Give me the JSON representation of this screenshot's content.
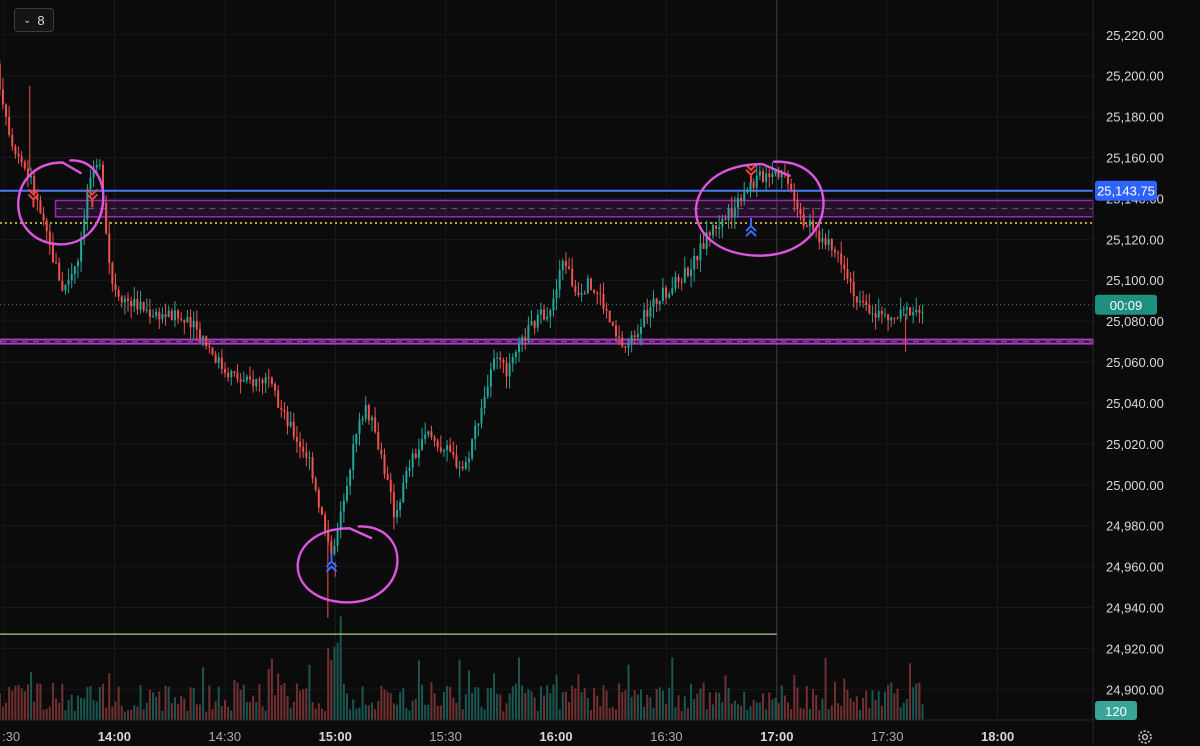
{
  "toolbar": {
    "interval_value": "8"
  },
  "chart_data": {
    "type": "candlestick",
    "title": "",
    "xlabel": "",
    "ylabel": "",
    "ylim": [
      24885,
      25237
    ],
    "y_ticks": [
      25220,
      25200,
      25180,
      25160,
      25140,
      25120,
      25100,
      25080,
      25060,
      25040,
      25020,
      25000,
      24980,
      24960,
      24940,
      24920,
      24900
    ],
    "y_tick_labels": [
      "25,220.00",
      "25,200.00",
      "25,180.00",
      "25,160.00",
      "25,140.00",
      "25,120.00",
      "25,100.00",
      "25,080.00",
      "25,060.00",
      "25,040.00",
      "25,020.00",
      "25,000.00",
      "24,980.00",
      "24,960.00",
      "24,940.00",
      "24,920.00",
      "24,900.00"
    ],
    "x_ticks": [
      {
        "label": ":30",
        "t": "13:30",
        "major": false
      },
      {
        "label": "14:00",
        "t": "14:00",
        "major": true
      },
      {
        "label": "14:30",
        "t": "14:30",
        "major": false
      },
      {
        "label": "15:00",
        "t": "15:00",
        "major": true
      },
      {
        "label": "15:30",
        "t": "15:30",
        "major": false
      },
      {
        "label": "16:00",
        "t": "16:00",
        "major": true
      },
      {
        "label": "16:30",
        "t": "16:30",
        "major": false
      },
      {
        "label": "17:00",
        "t": "17:00",
        "major": true
      },
      {
        "label": "17:30",
        "t": "17:30",
        "major": false
      },
      {
        "label": "18:00",
        "t": "18:00",
        "major": true
      }
    ],
    "price_path": [
      [
        "13:28",
        25210
      ],
      [
        "13:33",
        25168
      ],
      [
        "13:38",
        25150
      ],
      [
        "13:43",
        25118
      ],
      [
        "13:47",
        25095
      ],
      [
        "13:51",
        25112
      ],
      [
        "13:54",
        25150
      ],
      [
        "13:57",
        25155
      ],
      [
        "14:00",
        25100
      ],
      [
        "14:03",
        25092
      ],
      [
        "14:10",
        25085
      ],
      [
        "14:18",
        25082
      ],
      [
        "14:24",
        25075
      ],
      [
        "14:30",
        25058
      ],
      [
        "14:36",
        25050
      ],
      [
        "14:42",
        25052
      ],
      [
        "14:48",
        25030
      ],
      [
        "14:54",
        25012
      ],
      [
        "14:58",
        24978
      ],
      [
        "15:00",
        24962
      ],
      [
        "15:02",
        24985
      ],
      [
        "15:06",
        25020
      ],
      [
        "15:09",
        25040
      ],
      [
        "15:13",
        25018
      ],
      [
        "15:17",
        24985
      ],
      [
        "15:21",
        25010
      ],
      [
        "15:26",
        25025
      ],
      [
        "15:32",
        25015
      ],
      [
        "15:36",
        25008
      ],
      [
        "15:40",
        25035
      ],
      [
        "15:44",
        25060
      ],
      [
        "15:48",
        25055
      ],
      [
        "15:53",
        25075
      ],
      [
        "15:58",
        25085
      ],
      [
        "16:00",
        25088
      ],
      [
        "16:03",
        25112
      ],
      [
        "16:06",
        25095
      ],
      [
        "16:10",
        25098
      ],
      [
        "16:13",
        25092
      ],
      [
        "16:17",
        25072
      ],
      [
        "16:20",
        25067
      ],
      [
        "16:24",
        25080
      ],
      [
        "16:28",
        25090
      ],
      [
        "16:33",
        25098
      ],
      [
        "16:38",
        25108
      ],
      [
        "16:43",
        25125
      ],
      [
        "16:48",
        25132
      ],
      [
        "16:52",
        25145
      ],
      [
        "16:56",
        25150
      ],
      [
        "17:00",
        25155
      ],
      [
        "17:04",
        25150
      ],
      [
        "17:08",
        25130
      ],
      [
        "17:13",
        25120
      ],
      [
        "17:19",
        25110
      ],
      [
        "17:23",
        25088
      ],
      [
        "17:27",
        25085
      ],
      [
        "17:32",
        25080
      ],
      [
        "17:37",
        25086
      ],
      [
        "17:40",
        25085
      ]
    ],
    "annotations": {
      "resistance_line": 25143.75,
      "zone_top": 25139,
      "zone_bottom": 25131,
      "dotted_line": 25128,
      "support_line_top": 25071,
      "support_line_bottom": 25069,
      "low_line": 24927,
      "low_line_end": "17:00"
    },
    "markers": [
      {
        "type": "sell",
        "t": "13:38",
        "price": 25140
      },
      {
        "type": "sell",
        "t": "13:54",
        "price": 25140
      },
      {
        "type": "buy",
        "t": "14:59",
        "price": 24962
      },
      {
        "type": "sell",
        "t": "16:53",
        "price": 25152
      },
      {
        "type": "buy",
        "t": "16:53",
        "price": 25126
      }
    ],
    "highlight_circles": [
      {
        "t": "13:46",
        "price": 25140
      },
      {
        "t": "15:02",
        "price": 24963
      },
      {
        "t": "16:55",
        "price": 25134
      }
    ],
    "volume_max_label": 120,
    "colors": {
      "up": "#26a69a",
      "down": "#ef5350",
      "resistance": "#4a7bff",
      "zone": "#9c27b0",
      "dotted": "#f7d34a",
      "support": "#a93cc8",
      "low_line": "#9bd18a",
      "circle": "#e055e0",
      "marker_buy": "#3d6bff",
      "marker_sell": "#ef4444"
    },
    "price_tags": [
      {
        "label": "25,143.75",
        "price": 25143.75,
        "color": "#2f63ff"
      },
      {
        "label": "00:09",
        "price": 25088,
        "color": "#1f8f7f"
      }
    ]
  }
}
